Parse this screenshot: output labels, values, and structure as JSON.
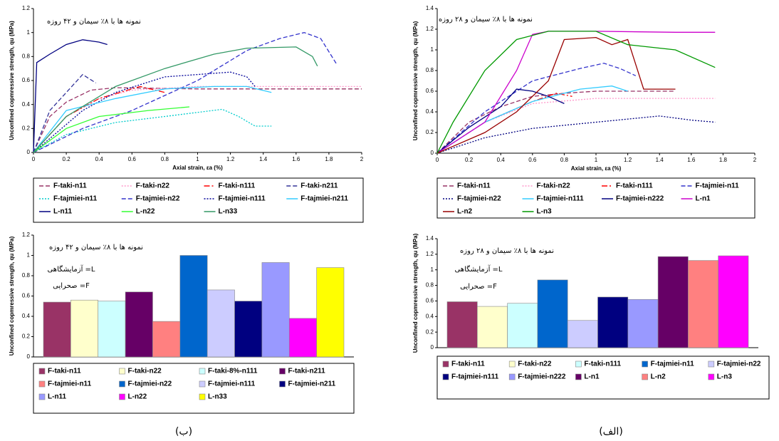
{
  "captions": [
    "(ب)",
    "(الف)"
  ],
  "chart_data": [
    {
      "type": "line",
      "annotation": "نمونه ها با ۸٪ سیمان و ۴۲ روزه",
      "x_label": "Axial strain, εa (%)",
      "y_label": "Unconfined copmressive strength, qu (MPa)",
      "xlim": [
        0,
        2
      ],
      "xticks": [
        0,
        0.2,
        0.4,
        0.6,
        0.8,
        1,
        1.2,
        1.4,
        1.6,
        1.8,
        2
      ],
      "ylim": [
        0,
        1.2
      ],
      "yticks": [
        0,
        0.2,
        0.4,
        0.6,
        0.8,
        1,
        1.2
      ],
      "series": [
        {
          "name": "F-taki-n11",
          "color": "#993366",
          "dash": "dash",
          "x": [
            0,
            0.1,
            0.2,
            0.35,
            0.5,
            1.0,
            1.5,
            2.0
          ],
          "values": [
            0,
            0.3,
            0.42,
            0.52,
            0.54,
            0.53,
            0.53,
            0.53
          ]
        },
        {
          "name": "F-taki-n22",
          "color": "#ff99cc",
          "dash": "dot",
          "x": [
            0,
            0.2,
            0.4,
            0.6,
            1.0,
            1.5,
            2.0
          ],
          "values": [
            0,
            0.3,
            0.45,
            0.52,
            0.55,
            0.55,
            0.55
          ]
        },
        {
          "name": "F-taki-n111",
          "color": "#ff0000",
          "dash": "dashdot",
          "x": [
            0,
            0.2,
            0.4,
            0.65,
            0.8
          ],
          "values": [
            0,
            0.3,
            0.45,
            0.55,
            0.5
          ]
        },
        {
          "name": "F-taki-n211",
          "color": "#333399",
          "dash": "dash",
          "x": [
            0,
            0.1,
            0.2,
            0.3,
            0.38
          ],
          "values": [
            0,
            0.35,
            0.5,
            0.65,
            0.58
          ]
        },
        {
          "name": "F-tajmiei-n11",
          "color": "#00cccc",
          "dash": "dot",
          "x": [
            0,
            0.2,
            0.5,
            0.8,
            1.15,
            1.25,
            1.35,
            1.45
          ],
          "values": [
            0,
            0.15,
            0.25,
            0.3,
            0.36,
            0.3,
            0.22,
            0.22
          ]
        },
        {
          "name": "F-tajmiei-n22",
          "color": "#3333cc",
          "dash": "dash",
          "x": [
            0,
            0.3,
            0.6,
            1.0,
            1.3,
            1.5,
            1.65,
            1.75,
            1.85
          ],
          "values": [
            0,
            0.2,
            0.35,
            0.6,
            0.85,
            0.95,
            1.0,
            0.95,
            0.73
          ]
        },
        {
          "name": "F-tajmiei-n111",
          "color": "#000099",
          "dash": "dot",
          "x": [
            0,
            0.3,
            0.5,
            0.8,
            1.0,
            1.2,
            1.3,
            1.35
          ],
          "values": [
            0,
            0.35,
            0.5,
            0.63,
            0.65,
            0.67,
            0.63,
            0.55
          ]
        },
        {
          "name": "F-tajmiei-n211",
          "color": "#33ccff",
          "dash": "solid",
          "x": [
            0,
            0.2,
            0.5,
            0.8,
            1.1,
            1.3,
            1.45
          ],
          "values": [
            0,
            0.35,
            0.45,
            0.53,
            0.55,
            0.55,
            0.5
          ]
        },
        {
          "name": "L-n11",
          "color": "#000080",
          "dash": "solid",
          "x": [
            0,
            0.02,
            0.1,
            0.2,
            0.3,
            0.4,
            0.45
          ],
          "values": [
            0,
            0.75,
            0.82,
            0.9,
            0.94,
            0.92,
            0.9
          ]
        },
        {
          "name": "L-n22",
          "color": "#33ff33",
          "dash": "solid",
          "x": [
            0,
            0.2,
            0.4,
            0.7,
            0.95
          ],
          "values": [
            0,
            0.2,
            0.3,
            0.35,
            0.38
          ]
        },
        {
          "name": "L-n33",
          "color": "#339966",
          "dash": "solid",
          "x": [
            0,
            0.2,
            0.5,
            0.8,
            1.1,
            1.3,
            1.6,
            1.7,
            1.73
          ],
          "values": [
            0,
            0.3,
            0.55,
            0.7,
            0.82,
            0.87,
            0.88,
            0.8,
            0.72
          ]
        }
      ]
    },
    {
      "type": "line",
      "annotation": "نمونه ها با ۸٪ سیمان و ۲۸ روزه",
      "x_label": "Axial strain, εa (%)",
      "y_label": "Unconfined copmressive strength, qu (MPa)",
      "xlim": [
        0,
        2
      ],
      "xticks": [
        0,
        0.2,
        0.4,
        0.6,
        0.8,
        1,
        1.2,
        1.4,
        1.6,
        1.8,
        2
      ],
      "ylim": [
        0,
        1.4
      ],
      "yticks": [
        0,
        0.2,
        0.4,
        0.6,
        0.8,
        1,
        1.2,
        1.4
      ],
      "series": [
        {
          "name": "F-taki-n11",
          "color": "#993366",
          "dash": "dash",
          "x": [
            0,
            0.2,
            0.4,
            0.6,
            0.8,
            1.0,
            1.2,
            1.5
          ],
          "values": [
            0,
            0.3,
            0.45,
            0.55,
            0.58,
            0.6,
            0.6,
            0.6
          ]
        },
        {
          "name": "F-taki-n22",
          "color": "#ff99cc",
          "dash": "dot",
          "x": [
            0,
            0.3,
            0.6,
            1.0,
            1.5,
            1.75
          ],
          "values": [
            0,
            0.3,
            0.48,
            0.53,
            0.53,
            0.53
          ]
        },
        {
          "name": "F-taki-n111",
          "color": "#ff0000",
          "dash": "dashdot",
          "x": [
            0,
            0.3,
            0.6,
            0.75,
            0.85
          ],
          "values": [
            0,
            0.3,
            0.5,
            0.58,
            0.55
          ]
        },
        {
          "name": "F-tajmiei-n11",
          "color": "#3333cc",
          "dash": "dash",
          "x": [
            0,
            0.3,
            0.6,
            0.9,
            1.05,
            1.15,
            1.25
          ],
          "values": [
            0,
            0.4,
            0.7,
            0.82,
            0.87,
            0.82,
            0.75
          ]
        },
        {
          "name": "F-tajmiei-n22",
          "color": "#000080",
          "dash": "dot",
          "x": [
            0,
            0.3,
            0.6,
            1.0,
            1.4,
            1.6,
            1.75
          ],
          "values": [
            0,
            0.15,
            0.24,
            0.3,
            0.36,
            0.32,
            0.3
          ]
        },
        {
          "name": "F-tajmiei-n111",
          "color": "#33ccff",
          "dash": "solid",
          "x": [
            0,
            0.3,
            0.6,
            0.9,
            1.1,
            1.2
          ],
          "values": [
            0,
            0.3,
            0.5,
            0.62,
            0.65,
            0.6
          ]
        },
        {
          "name": "F-tajmiei-n222",
          "color": "#000080",
          "dash": "solid",
          "x": [
            0,
            0.2,
            0.4,
            0.5,
            0.6,
            0.7,
            0.8
          ],
          "values": [
            0,
            0.25,
            0.45,
            0.62,
            0.6,
            0.55,
            0.48
          ]
        },
        {
          "name": "L-n1",
          "color": "#cc00cc",
          "dash": "solid",
          "x": [
            0,
            0.3,
            0.5,
            0.6,
            0.7,
            1.0,
            1.5,
            1.75
          ],
          "values": [
            0,
            0.3,
            0.8,
            1.15,
            1.18,
            1.18,
            1.17,
            1.17
          ]
        },
        {
          "name": "L-n2",
          "color": "#990000",
          "dash": "solid",
          "x": [
            0,
            0.3,
            0.5,
            0.7,
            0.8,
            1.0,
            1.1,
            1.2,
            1.3,
            1.5
          ],
          "values": [
            0,
            0.2,
            0.4,
            0.7,
            1.1,
            1.12,
            1.05,
            1.1,
            0.62,
            0.62
          ]
        },
        {
          "name": "L-n3",
          "color": "#009900",
          "dash": "solid",
          "x": [
            0,
            0.1,
            0.3,
            0.5,
            0.7,
            1.0,
            1.2,
            1.5,
            1.75
          ],
          "values": [
            0,
            0.3,
            0.8,
            1.1,
            1.18,
            1.18,
            1.05,
            1.0,
            0.83
          ]
        }
      ]
    },
    {
      "type": "bar",
      "annotation": "نمونه ها با ۸٪ سیمان و ۴۲ روزه",
      "notes": [
        "آزمایشگاهی =L",
        "صحرایی =F"
      ],
      "y_label": "Unconfined copmressive strength, qu (MPa)",
      "ylim": [
        0,
        1.2
      ],
      "yticks": [
        0,
        0.2,
        0.4,
        0.6,
        0.8,
        1,
        1.2
      ],
      "categories": [
        "F-taki-n11",
        "F-taki-n22",
        "F-taki-8%-n111",
        "F-taki-n211",
        "F-tajmiei-n11",
        "F-tajmiei-n22",
        "F-tajmiei-n111",
        "F-tajmiei-n211",
        "L-n11",
        "L-n22",
        "L-n33"
      ],
      "values": [
        0.54,
        0.56,
        0.55,
        0.64,
        0.35,
        1.0,
        0.66,
        0.55,
        0.93,
        0.38,
        0.88
      ],
      "colors": [
        "#993366",
        "#ffffcc",
        "#ccffff",
        "#660066",
        "#ff8080",
        "#0066cc",
        "#ccccff",
        "#000080",
        "#9999ff",
        "#ff00ff",
        "#ffff00"
      ]
    },
    {
      "type": "bar",
      "annotation": "نمونه ها با ۸٪ سیمان و ۲۸ روزه",
      "notes": [
        "آزمایشگاهی =L",
        "صحرایی =F"
      ],
      "y_label": "Unconfined copmressive strength, qu (MPa)",
      "ylim": [
        0,
        1.4
      ],
      "yticks": [
        0,
        0.2,
        0.4,
        0.6,
        0.8,
        1,
        1.2,
        1.4
      ],
      "categories": [
        "F-taki-n11",
        "F-taki-n22",
        "F-taki-n111",
        "F-tajmiei-n11",
        "F-tajmiei-n22",
        "F-tajmiei-n111",
        "F-tajmiei-n222",
        "L-n1",
        "L-n2",
        "L-n3"
      ],
      "values": [
        0.59,
        0.53,
        0.57,
        0.87,
        0.35,
        0.65,
        0.62,
        1.17,
        1.12,
        1.18
      ],
      "colors": [
        "#993366",
        "#ffffcc",
        "#ccffff",
        "#0066cc",
        "#ccccff",
        "#000080",
        "#9999ff",
        "#660066",
        "#ff8080",
        "#ff00ff"
      ]
    }
  ]
}
